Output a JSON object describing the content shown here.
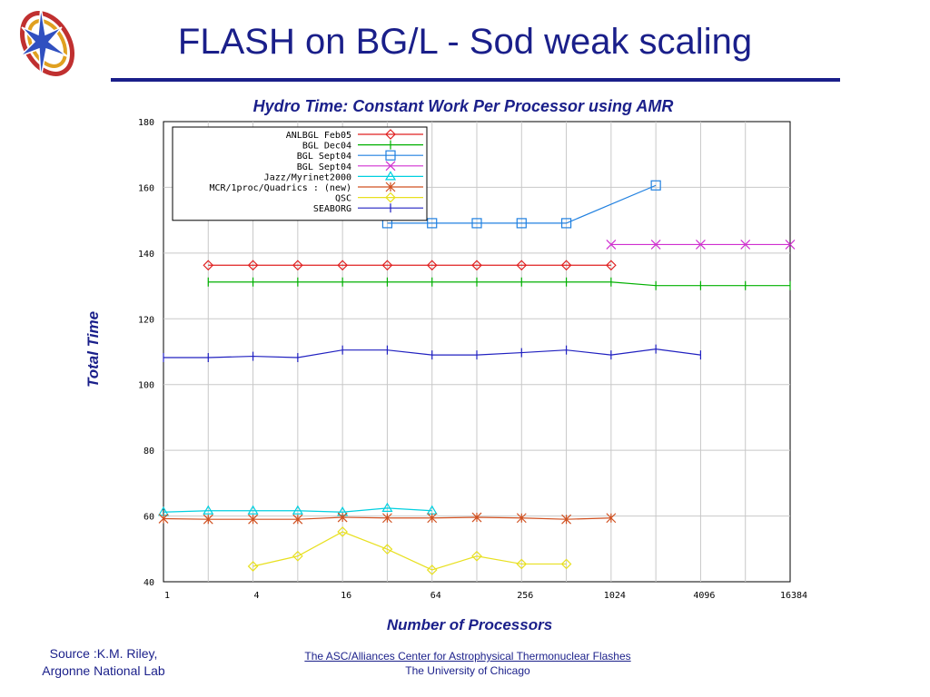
{
  "slide": {
    "title": "FLASH on BG/L - Sod weak scaling",
    "source_line1": "Source :K.M. Riley,",
    "source_line2": "Argonne National Lab",
    "footer_line1": "The ASC/Alliances Center for Astrophysical Thermonuclear Flashes",
    "footer_line2": "The University of Chicago",
    "logo_icon": "flash-center-star-logo-icon"
  },
  "chart_data": {
    "type": "line",
    "title": "Hydro Time: Constant Work Per Processor using AMR",
    "xlabel": "Number of Processors",
    "ylabel": "Total Time",
    "xscale": "log2",
    "xlim": [
      1,
      16384
    ],
    "ylim": [
      40,
      180
    ],
    "x_ticks": [
      1,
      4,
      16,
      64,
      256,
      1024,
      4096,
      16384
    ],
    "y_ticks": [
      40,
      60,
      80,
      100,
      120,
      140,
      160,
      180
    ],
    "grid": true,
    "legend_position": "top-left",
    "series": [
      {
        "name": "ANLBGL Feb05",
        "color": "#e02020",
        "marker": "diamond",
        "x": [
          2,
          4,
          8,
          16,
          32,
          64,
          128,
          256,
          512,
          1024
        ],
        "y": [
          136.3,
          136.3,
          136.3,
          136.3,
          136.3,
          136.3,
          136.3,
          136.3,
          136.3,
          136.3
        ]
      },
      {
        "name": "BGL Dec04",
        "color": "#00b000",
        "marker": "vbar",
        "x": [
          2,
          4,
          8,
          16,
          32,
          64,
          128,
          256,
          512,
          1024,
          2048,
          4096,
          8192,
          16384
        ],
        "y": [
          131.2,
          131.2,
          131.2,
          131.2,
          131.2,
          131.2,
          131.2,
          131.2,
          131.2,
          131.2,
          130.1,
          130.1,
          130.1,
          130.1
        ]
      },
      {
        "name": "BGL Sept04",
        "color": "#2080e0",
        "marker": "square",
        "x": [
          32,
          64,
          128,
          256,
          512,
          2048
        ],
        "y": [
          149.1,
          149.1,
          149.1,
          149.1,
          149.1,
          160.6
        ]
      },
      {
        "name": "BGL Sept04",
        "color": "#d030d0",
        "marker": "x",
        "x": [
          1024,
          2048,
          4096,
          8192,
          16384
        ],
        "y": [
          142.6,
          142.6,
          142.6,
          142.6,
          142.6
        ]
      },
      {
        "name": "Jazz/Myrinet2000",
        "color": "#00d0e0",
        "marker": "triangle",
        "x": [
          1,
          2,
          4,
          8,
          16,
          32,
          64
        ],
        "y": [
          61.2,
          61.6,
          61.6,
          61.6,
          61.2,
          62.4,
          61.6
        ]
      },
      {
        "name": "MCR/1proc/Quadrics : (new)",
        "color": "#d05020",
        "marker": "star",
        "x": [
          1,
          2,
          4,
          8,
          16,
          32,
          64,
          128,
          256,
          512,
          1024
        ],
        "y": [
          59.2,
          59.0,
          59.0,
          59.0,
          59.6,
          59.4,
          59.4,
          59.6,
          59.4,
          59.0,
          59.4
        ]
      },
      {
        "name": "QSC",
        "color": "#e8e020",
        "marker": "diamond",
        "x": [
          4,
          8,
          16,
          32,
          64,
          128,
          256,
          512
        ],
        "y": [
          44.7,
          47.8,
          55.2,
          49.9,
          43.6,
          47.8,
          45.4,
          45.4
        ]
      },
      {
        "name": "SEABORG",
        "color": "#2020c0",
        "marker": "vbar",
        "x": [
          1,
          2,
          4,
          8,
          16,
          32,
          64,
          128,
          256,
          512,
          1024,
          2048,
          4096
        ],
        "y": [
          108.2,
          108.2,
          108.6,
          108.2,
          110.5,
          110.5,
          109.0,
          109.0,
          109.7,
          110.5,
          109.0,
          110.8,
          109.0
        ]
      }
    ]
  }
}
